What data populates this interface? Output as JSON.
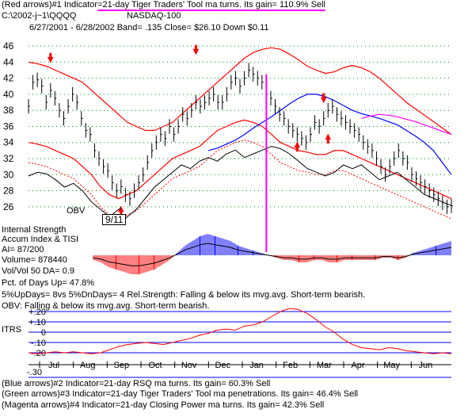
{
  "header": {
    "line1_prefix": "(Red arrows)#1 Indicator",
    "line1_highlight": "=21-day Tiger Traders' Tool ma turns.  Its gain= 110.9% Sell",
    "path": "C:\\2002-j~1\\QQQQ",
    "index_name": "NASDAQ-100",
    "stats": "6/27/2001 - 6/28/2002  Band= .135  Close= $26.10   Down $0.11",
    "highlight_color": "#ff00ff"
  },
  "annotations": {
    "obv_label": "OBV",
    "event_label": "9/11",
    "internal_strength": "Internal Strength",
    "accum_index": "Accum Index & TISI",
    "ai": "AI= 87/200",
    "volume": "Volume= 878440",
    "vol_ratio": "Vol/Vol 50 DA= 0.9",
    "pct_up": "Pct. of Days Up= 47.8%",
    "updays": "5%UpDays= 8vs 5%DnDays= 4   Rel.Strength: Falling & below its mvg.avg. Short-term bearish.",
    "obv_status": "OBV: Falling & below its mvg.avg. Short-term bearish.",
    "itrs_label": "ITRS",
    "itrs_ticks": [
      "+.20",
      "+.10",
      "0",
      "-.10",
      "-.20"
    ],
    "itrs_tick_values": [
      0.2,
      0.1,
      0,
      -0.1,
      -0.2
    ],
    "itrs_extra": "-.30"
  },
  "footer": {
    "line1": "(Blue arrows)#2 Indicator=21-day RSQ ma turns.  Its gain= 60.3% Sell",
    "line2": "(Green arrows)#3 Indicator=21-day Tiger Traders' Tool ma penetrations.  Its gain= 46.4% Sell",
    "line3": "(Magenta arrows)#4 Indicator=21-day Closing Power ma turns.  Its gain= 42.3% Sell"
  },
  "colors": {
    "price": "#000000",
    "band": "#ff0000",
    "ma_blue": "#0000ff",
    "ma_magenta": "#ff00ff",
    "accum_pos": "#0000ff",
    "accum_neg": "#ff0000",
    "itrs_line": "#ff0000",
    "grid_dots": "#008000",
    "itrs_grid": "#0000ff"
  },
  "chart_data": {
    "type": "line",
    "title": "NASDAQ-100",
    "x_axis_months": [
      "Jul",
      "Aug",
      "Sep",
      "Oct",
      "Nov",
      "Dec",
      "Jan",
      "Feb",
      "Mar",
      "Apr",
      "May",
      "Jun"
    ],
    "y_ticks": [
      46,
      44,
      42,
      40,
      38,
      36,
      34,
      32,
      30,
      28,
      26
    ],
    "ylim": [
      24.6,
      47
    ],
    "close": [
      38.5,
      41.5,
      41.8,
      41,
      39,
      40.5,
      39.5,
      38,
      37,
      38.5,
      40,
      39,
      37,
      35.5,
      35,
      33,
      32,
      31,
      30.5,
      29,
      28,
      28.5,
      27.5,
      27,
      28,
      29,
      30,
      31.5,
      33,
      34,
      35,
      34.5,
      36,
      35,
      36,
      37.5,
      37,
      38,
      39,
      38.5,
      39,
      39.5,
      40,
      39,
      39,
      40,
      41.5,
      42,
      41,
      42,
      43,
      42.5,
      42,
      41.5,
      40,
      39.5,
      38.5,
      37.5,
      37,
      36,
      35.5,
      35,
      34.5,
      34,
      35,
      36.5,
      36,
      37,
      38,
      38.5,
      37.5,
      37,
      36.5,
      36,
      35.5,
      35,
      34,
      33.5,
      33,
      32,
      31,
      30,
      31,
      32,
      33,
      32,
      31.5,
      30,
      29.5,
      29,
      28.5,
      28,
      27.5,
      27,
      26.5,
      26,
      26.1
    ],
    "upper_band": [
      44,
      43.8,
      43.5,
      43,
      42.5,
      42,
      41.5,
      40.5,
      39.5,
      38.5,
      37.5,
      36.5,
      36,
      35.5,
      35.5,
      36,
      36.5,
      37.5,
      38.5,
      39.5,
      40.5,
      41.5,
      42.5,
      43.5,
      44.5,
      45.2,
      45.6,
      45.8,
      45.6,
      45,
      44.3,
      43.5,
      43,
      42.6,
      42.8,
      43.3,
      43.6,
      43.3,
      42.8,
      42,
      41,
      40,
      39,
      38.2,
      37.4,
      36.6,
      35.8,
      35
    ],
    "lower_band": [
      34,
      33.8,
      33.5,
      33,
      32.5,
      32,
      31,
      30,
      28.5,
      27.5,
      27,
      27.5,
      28,
      29,
      30,
      31,
      32,
      32.5,
      33,
      33.5,
      34.5,
      35.5,
      36,
      36.5,
      36.8,
      36.5,
      36,
      35,
      34,
      33.5,
      33,
      32.8,
      32.5,
      32.5,
      33,
      33,
      32.5,
      32,
      31.5,
      31,
      30.5,
      30,
      29.5,
      29,
      28.5,
      28,
      27.5,
      27
    ],
    "ma_blue": [
      null,
      null,
      null,
      null,
      null,
      null,
      null,
      null,
      null,
      null,
      null,
      null,
      null,
      null,
      null,
      null,
      null,
      null,
      null,
      null,
      33,
      33.3,
      33.8,
      34.3,
      35,
      35.8,
      36.5,
      37.2,
      38,
      38.8,
      39.5,
      40,
      40,
      39.7,
      39.2,
      38.6,
      38,
      37.6,
      37.3,
      37,
      36.6,
      36.2,
      35.5,
      34.8,
      34,
      33,
      31.5,
      30
    ],
    "ma_magenta": [
      null,
      null,
      null,
      null,
      null,
      null,
      null,
      null,
      null,
      null,
      null,
      null,
      null,
      null,
      null,
      null,
      null,
      null,
      null,
      null,
      null,
      null,
      null,
      null,
      null,
      null,
      null,
      null,
      null,
      null,
      null,
      null,
      null,
      null,
      null,
      null,
      null,
      37,
      37.3,
      37.5,
      37.4,
      37.2,
      36.9,
      36.6,
      36.2,
      35.8,
      35.4,
      35
    ],
    "obv": [
      28.5,
      29,
      28.8,
      28,
      27,
      27.5,
      26.5,
      25,
      24,
      23,
      22,
      23,
      24,
      25.5,
      27,
      28,
      29,
      30,
      29.5,
      30.5,
      31,
      30.5,
      31.5,
      32,
      31,
      31.5,
      32,
      32.5,
      32.2,
      31.5,
      30.5,
      29.5,
      29,
      28.5,
      29,
      30,
      29.5,
      30,
      29,
      28,
      28.5,
      29,
      28,
      27,
      26,
      25.5,
      25,
      24.5
    ],
    "accum": [
      -2,
      -3,
      -5,
      -6,
      -7,
      -8,
      -8,
      -7,
      -6,
      -4,
      -2,
      1,
      4,
      6,
      8,
      9,
      8,
      7,
      6,
      4,
      3,
      2,
      1,
      0,
      -1,
      -2,
      -2,
      -3,
      -3,
      -2,
      -2,
      -3,
      -3,
      -2,
      -2,
      -2,
      -2,
      -2,
      -1,
      -1,
      -2,
      -1,
      1,
      2,
      3,
      4,
      5,
      6
    ],
    "itrs": [
      -0.2,
      -0.21,
      -0.2,
      -0.19,
      -0.2,
      -0.19,
      -0.2,
      -0.21,
      -0.2,
      -0.17,
      -0.14,
      -0.12,
      -0.11,
      -0.1,
      -0.11,
      -0.12,
      -0.1,
      -0.08,
      -0.06,
      -0.03,
      -0.01,
      0.02,
      0.03,
      0.02,
      0.06,
      0.07,
      0.1,
      0.15,
      0.2,
      0.23,
      0.22,
      0.18,
      0.12,
      0.05,
      0.0,
      -0.07,
      -0.12,
      -0.15,
      -0.16,
      -0.17,
      -0.15,
      -0.16,
      -0.18,
      -0.19,
      -0.2,
      -0.21,
      -0.2,
      -0.21
    ],
    "ranges": {
      "obv": [
        18,
        33
      ],
      "accum": [
        -10,
        10
      ],
      "itrs": [
        -0.3,
        0.3
      ]
    },
    "red_arrows_down": [
      [
        5,
        44
      ],
      [
        38,
        45
      ],
      [
        67,
        39
      ]
    ],
    "red_arrows_up": [
      [
        21,
        26
      ],
      [
        61,
        34
      ],
      [
        68,
        35
      ]
    ],
    "event_index": 21,
    "sell_line_index": 54
  }
}
